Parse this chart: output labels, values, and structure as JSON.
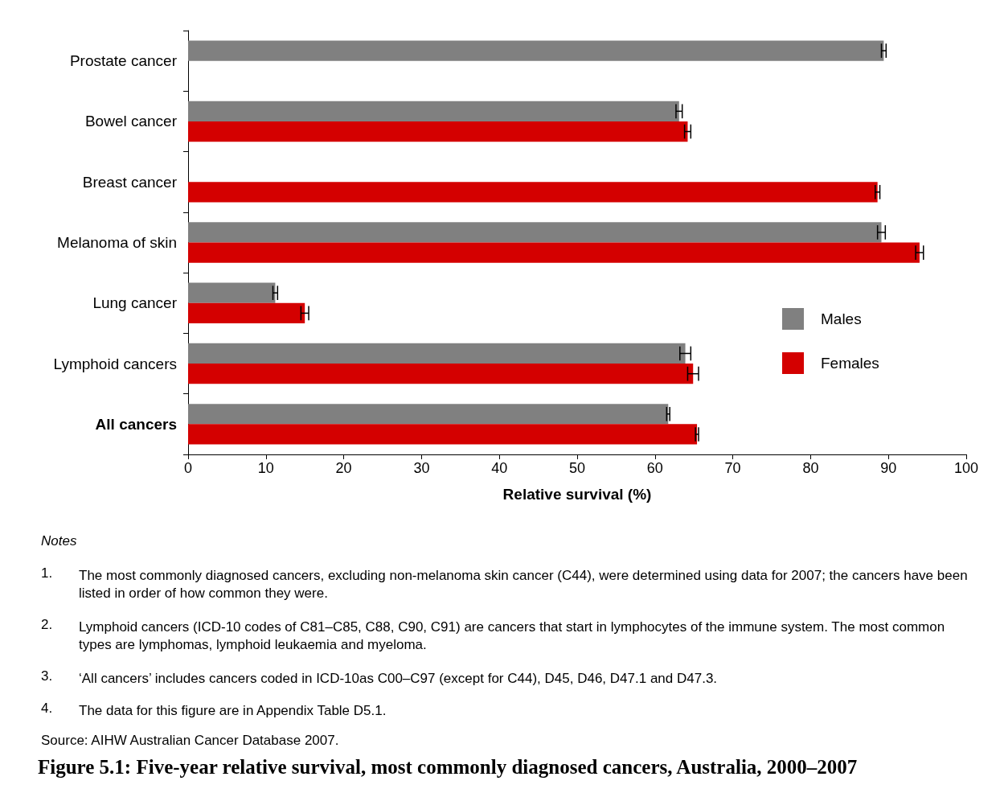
{
  "chart_data": {
    "type": "bar",
    "orientation": "horizontal",
    "title": "Figure 5.1: Five-year relative survival, most commonly diagnosed cancers, Australia, 2000–2007",
    "xlabel": "Relative survival (%)",
    "categories": [
      "Prostate cancer",
      "Bowel cancer",
      "Breast cancer",
      "Melanoma of skin",
      "Lung cancer",
      "Lymphoid cancers",
      "All cancers"
    ],
    "series": [
      {
        "name": "Males",
        "color": "#808080",
        "values": [
          89.4,
          63.1,
          null,
          89.1,
          11.2,
          63.9,
          61.7
        ],
        "errors": [
          0.3,
          0.4,
          null,
          0.5,
          0.3,
          0.7,
          0.2
        ]
      },
      {
        "name": "Females",
        "color": "#d40000",
        "values": [
          null,
          64.2,
          88.6,
          94.0,
          15.0,
          64.9,
          65.4
        ],
        "errors": [
          null,
          0.4,
          0.3,
          0.5,
          0.5,
          0.7,
          0.2
        ]
      }
    ],
    "xlim": [
      0,
      100
    ],
    "xticks": [
      0,
      10,
      20,
      30,
      40,
      50,
      60,
      70,
      80,
      90,
      100
    ],
    "grid": false,
    "legend": "right",
    "annotations": [
      "Notes",
      "1.\tThe most commonly diagnosed cancers, excluding non-melanoma skin cancer (C44), were determined using data for 2007; the cancers have been listed in order of how common they were.",
      "2.\tLymphoid cancers (ICD-10 codes of C81–C85, C88, C90, C91) are cancers that start in lymphocytes of the immune system. The most common types are lymphomas, lymphoid leukaemia and myeloma.",
      "3.\t‘All cancers’ includes cancers coded in ICD-10as C00–C97 (except for C44), D45, D46, D47.1 and D47.3.",
      "4.\tThe data for this figure are in Appendix Table D5.1.",
      "Source: AIHW Australian Cancer Database 2007."
    ]
  }
}
